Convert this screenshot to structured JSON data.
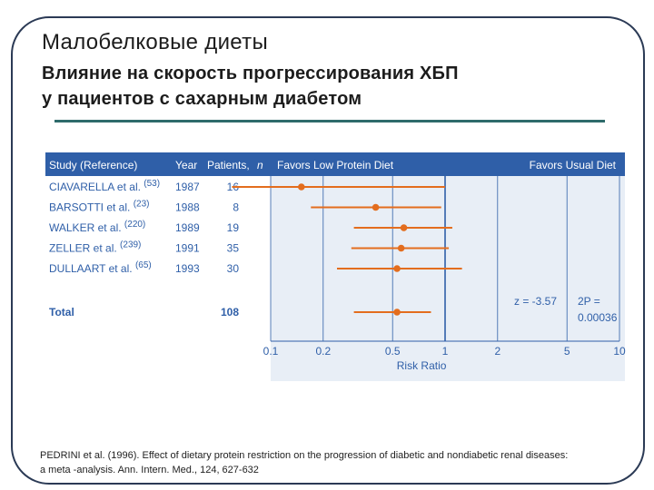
{
  "slide": {
    "title": "Малобелковые диеты",
    "subtitle_line1": "Влияние на скорость прогрессирования ХБП",
    "subtitle_line2": "у пациентов с сахарным диабетом",
    "citation_line1": "PEDRINI et al. (1996). Effect of dietary protein restriction on the progression of diabetic and nondiabetic renal diseases:",
    "citation_line2": "a meta -analysis. Ann. Intern. Med., 124, 627-632"
  },
  "colors": {
    "header_bg": "#2f5fa8",
    "plot_bg": "#e8eef6",
    "marker": "#e36d1e",
    "gridline": "#2f5fa8",
    "text_blue": "#2f5fa8"
  },
  "chart_data": {
    "type": "forest",
    "header": {
      "study": "Study (Reference)",
      "year": "Year",
      "patients": "Patients,",
      "patients_n": "n",
      "favors_left": "Favors Low Protein Diet",
      "favors_right": "Favors Usual Diet"
    },
    "studies": [
      {
        "name": "CIAVARELLA et al.",
        "ref": "(53)",
        "year": "1987",
        "n": "16",
        "rr": 0.15,
        "ci": [
          0.06,
          1.0
        ]
      },
      {
        "name": "BARSOTTI et al.",
        "ref": "(23)",
        "year": "1988",
        "n": "8",
        "rr": 0.4,
        "ci": [
          0.17,
          0.95
        ]
      },
      {
        "name": "WALKER et al.",
        "ref": "(220)",
        "year": "1989",
        "n": "19",
        "rr": 0.58,
        "ci": [
          0.3,
          1.1
        ]
      },
      {
        "name": "ZELLER et al.",
        "ref": "(239)",
        "year": "1991",
        "n": "35",
        "rr": 0.56,
        "ci": [
          0.29,
          1.05
        ]
      },
      {
        "name": "DULLAART et al.",
        "ref": "(65)",
        "year": "1993",
        "n": "30",
        "rr": 0.53,
        "ci": [
          0.24,
          1.25
        ]
      }
    ],
    "total": {
      "label": "Total",
      "n": "108",
      "rr": 0.53,
      "ci": [
        0.3,
        0.83
      ]
    },
    "stats": {
      "z": "z = -3.57",
      "p_label": "2P =",
      "p_value": "0.00036"
    },
    "x_axis": {
      "scale": "log",
      "ticks": [
        0.1,
        0.2,
        0.5,
        1,
        2,
        5,
        10
      ],
      "tick_labels": [
        "0.1",
        "0.2",
        "0.5",
        "1",
        "2",
        "5",
        "10"
      ],
      "label": "Risk Ratio",
      "range": [
        0.1,
        10
      ]
    }
  }
}
